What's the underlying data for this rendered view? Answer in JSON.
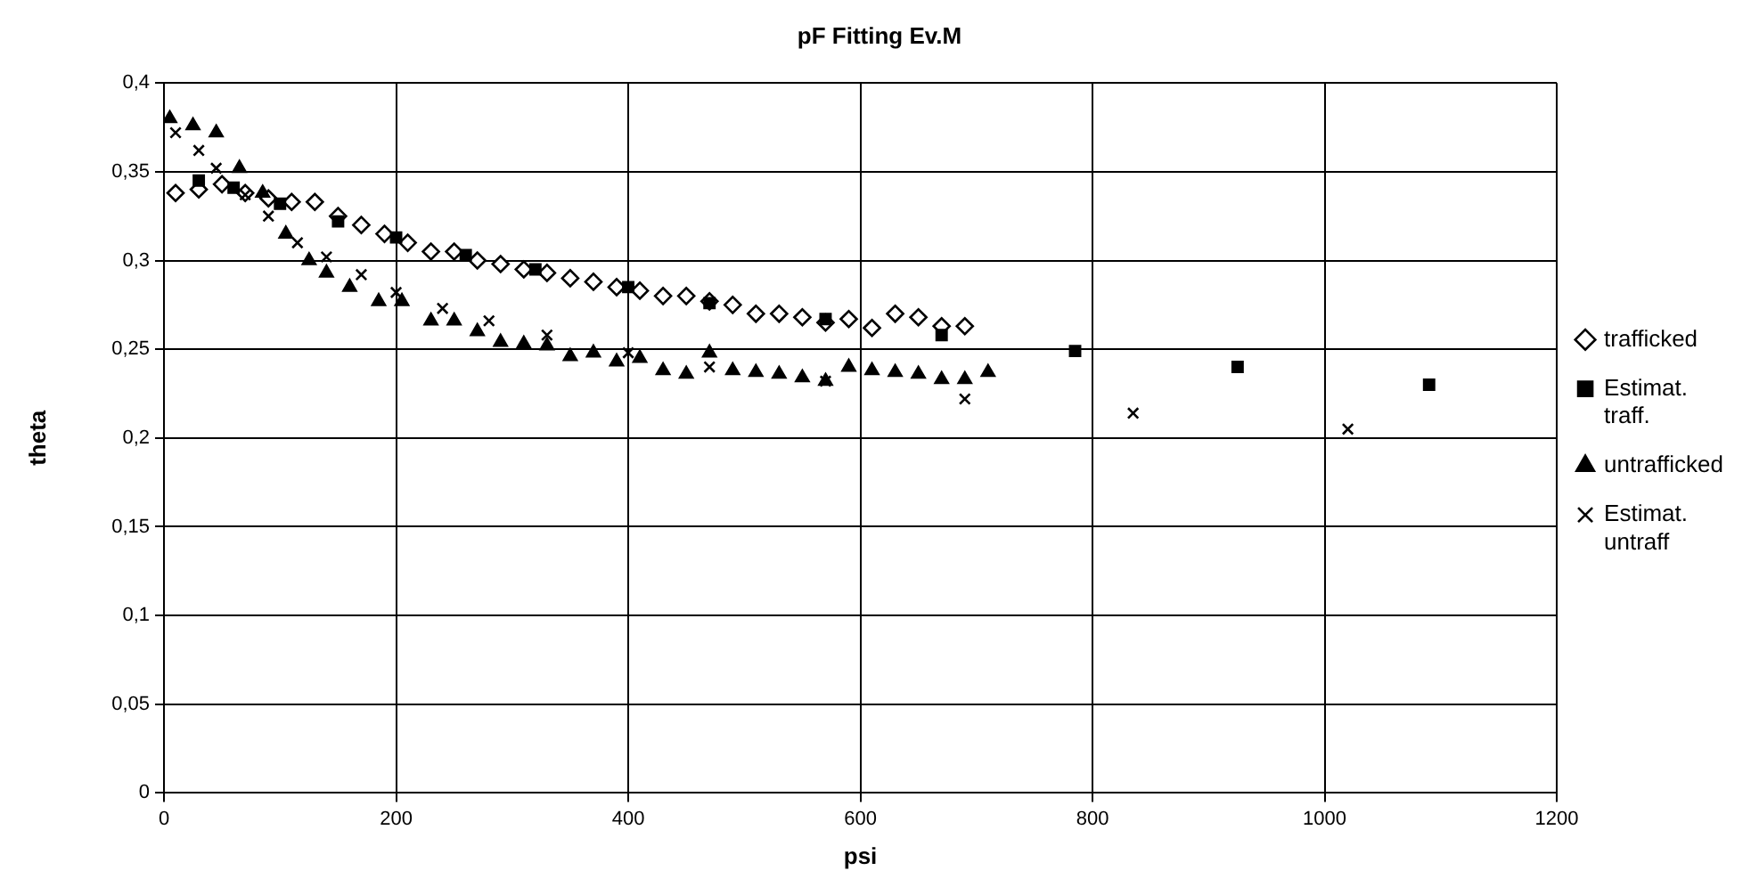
{
  "chart_data": {
    "type": "scatter",
    "title": "pF Fitting Ev.M",
    "xlabel": "psi",
    "ylabel": "theta",
    "xlim": [
      0,
      1200
    ],
    "xticks": [
      0,
      200,
      400,
      600,
      800,
      1000,
      1200
    ],
    "ylim": [
      0,
      0.4
    ],
    "yticks": [
      0,
      {
        "value": 0.05,
        "label": "0,05"
      },
      {
        "value": 0.1,
        "label": "0,1"
      },
      {
        "value": 0.15,
        "label": "0,15"
      },
      {
        "value": 0.2,
        "label": "0,2"
      },
      {
        "value": 0.25,
        "label": "0,25"
      },
      {
        "value": 0.3,
        "label": "0,3"
      },
      {
        "value": 0.35,
        "label": "0,35"
      },
      {
        "value": 0.4,
        "label": "0,4"
      }
    ],
    "grid": true,
    "legend": "right",
    "series": [
      {
        "name": "trafficked",
        "color": "#000000",
        "marker": "diamond",
        "x": [
          10,
          30,
          50,
          70,
          90,
          110,
          130,
          150,
          170,
          190,
          210,
          230,
          250,
          270,
          290,
          310,
          330,
          350,
          370,
          390,
          410,
          430,
          450,
          470,
          490,
          510,
          530,
          550,
          570,
          590,
          610,
          630,
          650,
          670,
          690
        ],
        "values": [
          0.338,
          0.34,
          0.343,
          0.338,
          0.335,
          0.333,
          0.333,
          0.325,
          0.32,
          0.315,
          0.31,
          0.305,
          0.305,
          0.3,
          0.298,
          0.295,
          0.293,
          0.29,
          0.288,
          0.285,
          0.283,
          0.28,
          0.28,
          0.277,
          0.275,
          0.27,
          0.27,
          0.268,
          0.265,
          0.267,
          0.262,
          0.27,
          0.268,
          0.263,
          0.263
        ]
      },
      {
        "name": "Estimat. traff.",
        "color": "#000000",
        "marker": "square",
        "x": [
          30,
          60,
          100,
          150,
          200,
          260,
          320,
          400,
          470,
          570,
          670,
          785,
          925,
          1090
        ],
        "values": [
          0.345,
          0.341,
          0.332,
          0.322,
          0.313,
          0.303,
          0.295,
          0.285,
          0.276,
          0.267,
          0.258,
          0.249,
          0.24,
          0.23
        ]
      },
      {
        "name": "untrafficked",
        "color": "#000000",
        "marker": "triangle",
        "x": [
          5,
          25,
          45,
          65,
          85,
          105,
          125,
          140,
          160,
          185,
          205,
          230,
          250,
          270,
          290,
          310,
          330,
          350,
          370,
          390,
          410,
          430,
          450,
          470,
          490,
          510,
          530,
          550,
          570,
          590,
          610,
          630,
          650,
          670,
          690,
          710
        ],
        "values": [
          0.38,
          0.376,
          0.372,
          0.352,
          0.338,
          0.315,
          0.3,
          0.293,
          0.285,
          0.277,
          0.277,
          0.266,
          0.266,
          0.26,
          0.254,
          0.253,
          0.252,
          0.246,
          0.248,
          0.243,
          0.245,
          0.238,
          0.236,
          0.248,
          0.238,
          0.237,
          0.236,
          0.234,
          0.232,
          0.24,
          0.238,
          0.237,
          0.236,
          0.233,
          0.233,
          0.237
        ]
      },
      {
        "name": "Estimat. untraff",
        "color": "#000000",
        "marker": "cross",
        "x": [
          10,
          30,
          45,
          70,
          90,
          115,
          140,
          170,
          200,
          240,
          280,
          330,
          400,
          470,
          570,
          690,
          835,
          1020
        ],
        "values": [
          0.372,
          0.362,
          0.352,
          0.337,
          0.325,
          0.31,
          0.302,
          0.292,
          0.282,
          0.273,
          0.266,
          0.258,
          0.248,
          0.24,
          0.232,
          0.222,
          0.214,
          0.205
        ]
      }
    ]
  }
}
